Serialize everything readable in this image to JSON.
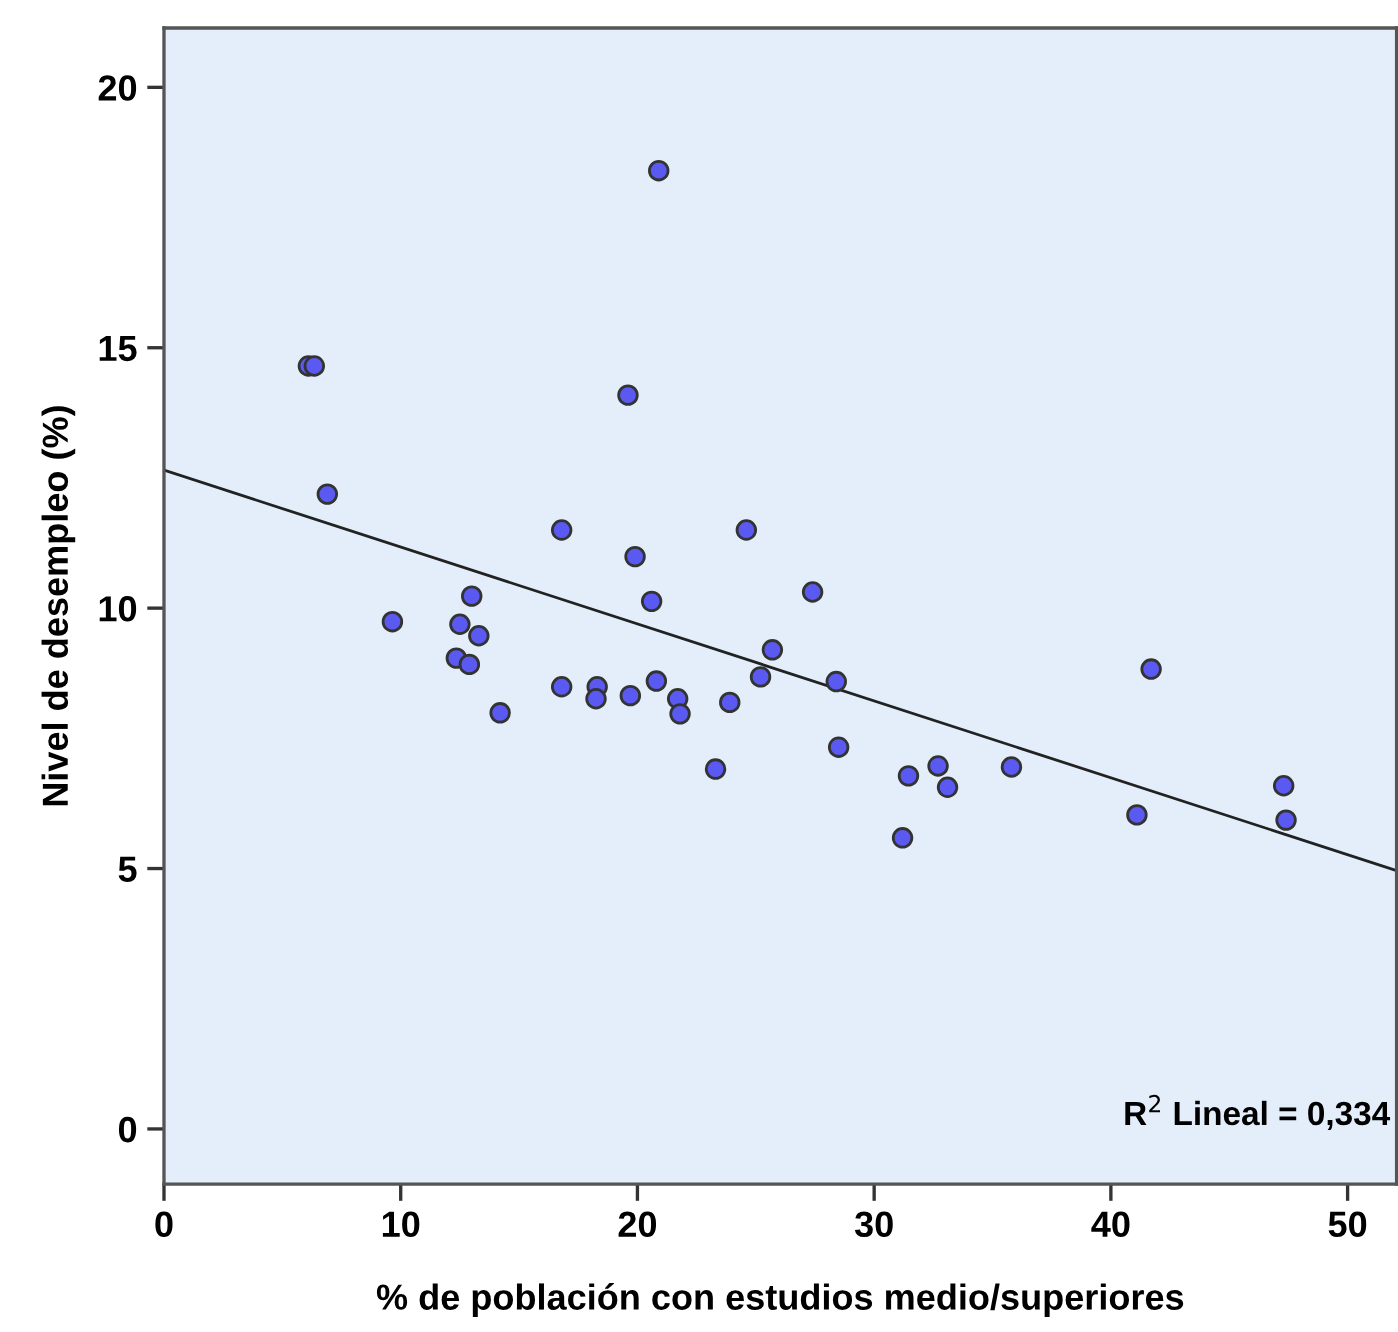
{
  "chart_data": {
    "type": "scatter",
    "xlabel": "% de población con estudios medio/superiores",
    "ylabel": "Nivel de desempleo (%)",
    "xlim": [
      0,
      52.07
    ],
    "ylim": [
      -1.06,
      21.14
    ],
    "xticks": [
      0,
      10,
      20,
      30,
      40,
      50
    ],
    "yticks": [
      0,
      5,
      10,
      15,
      20
    ],
    "grid": false,
    "legend": false,
    "annotations": [
      "R$^{2}$ Lineal = 0,334"
    ],
    "series": [
      {
        "marker": "circle",
        "color": "#5a5af2",
        "x": [
          6.1,
          6.35,
          6.9,
          9.65,
          13.0,
          12.5,
          13.3,
          12.35,
          12.9,
          14.2,
          16.8,
          18.3,
          18.25,
          19.7,
          20.8,
          21.7,
          21.8,
          23.9,
          23.3,
          25.2,
          25.7,
          20.6,
          19.9,
          20.9,
          19.6,
          16.8,
          24.6,
          27.4,
          28.4,
          28.5,
          31.45,
          32.7,
          33.1,
          31.2,
          35.8,
          41.1,
          41.7,
          47.3,
          47.4
        ],
        "values": [
          14.65,
          14.65,
          12.19,
          9.74,
          10.23,
          9.69,
          9.47,
          9.04,
          8.92,
          7.99,
          8.49,
          8.49,
          8.26,
          8.32,
          8.6,
          8.26,
          7.97,
          8.19,
          6.91,
          8.68,
          9.2,
          10.13,
          10.99,
          18.4,
          14.09,
          11.5,
          11.5,
          10.31,
          8.59,
          7.33,
          6.78,
          6.97,
          6.56,
          5.59,
          6.95,
          6.03,
          8.83,
          6.59,
          5.93
        ]
      },
      {
        "type": "line",
        "marker": "none",
        "color": "#222222",
        "x": [
          0,
          52.07
        ],
        "values": [
          12.65,
          4.96
        ]
      }
    ]
  }
}
